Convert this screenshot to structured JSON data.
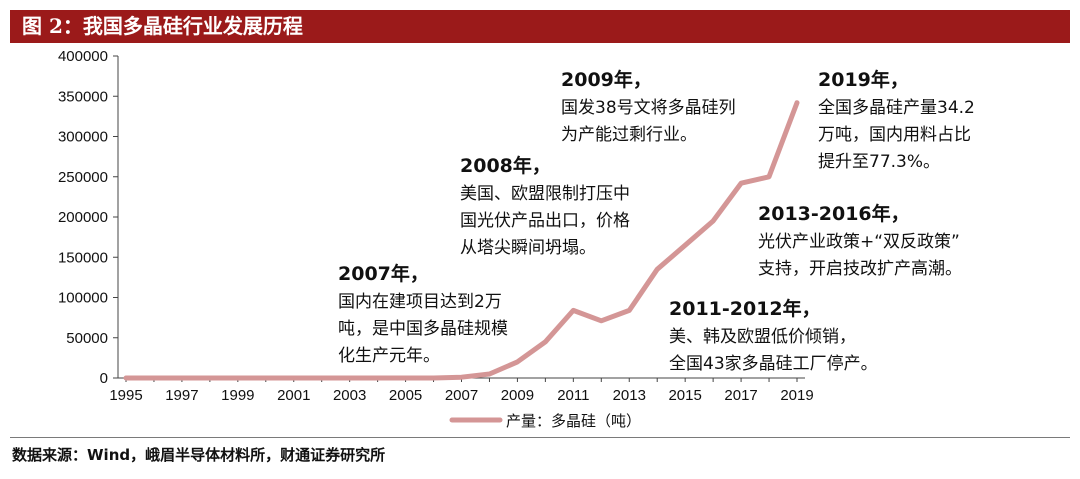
{
  "header": {
    "title": "图 2：我国多晶硅行业发展历程"
  },
  "footer": {
    "source": "数据来源：Wind，峨眉半导体材料所，财通证券研究所"
  },
  "colors": {
    "title_bg": "#9b1a1a",
    "series_line": "#d49696"
  },
  "chart_data": {
    "type": "line",
    "title": "",
    "xlabel": "",
    "ylabel": "",
    "x": [
      1995,
      1996,
      1997,
      1998,
      1999,
      2000,
      2001,
      2002,
      2003,
      2004,
      2005,
      2006,
      2007,
      2008,
      2009,
      2010,
      2011,
      2012,
      2013,
      2014,
      2015,
      2016,
      2017,
      2018,
      2019
    ],
    "x_tick_labels": [
      "1995",
      "1997",
      "1999",
      "2001",
      "2003",
      "2005",
      "2007",
      "2009",
      "2011",
      "2013",
      "2015",
      "2017",
      "2019"
    ],
    "y_tick_labels": [
      "0",
      "50000",
      "100000",
      "150000",
      "200000",
      "250000",
      "300000",
      "350000",
      "400000"
    ],
    "ylim": [
      0,
      400000
    ],
    "series": [
      {
        "name": "产量：多晶硅（吨）",
        "values": [
          0,
          0,
          0,
          0,
          0,
          0,
          0,
          0,
          0,
          0,
          0,
          0,
          1000,
          5000,
          20000,
          45000,
          84000,
          71000,
          84000,
          135000,
          165000,
          195000,
          242000,
          250000,
          342000
        ]
      }
    ],
    "legend": {
      "position": "bottom-center"
    },
    "annotations": [
      {
        "head": "2007年，",
        "lines": [
          "国内在建项目达到2万",
          "吨，是中国多晶硅规模",
          "化生产元年。"
        ]
      },
      {
        "head": "2008年，",
        "lines": [
          "美国、欧盟限制打压中",
          "国光伏产品出口，价格",
          "从塔尖瞬间坍塌。"
        ]
      },
      {
        "head": "2009年，",
        "lines": [
          "国发38号文将多晶硅列",
          "为产能过剩行业。"
        ]
      },
      {
        "head": "2011-2012年，",
        "lines": [
          "美、韩及欧盟低价倾销，",
          "全国43家多晶硅工厂停产。"
        ]
      },
      {
        "head": "2013-2016年，",
        "lines": [
          "光伏产业政策+“双反政策”",
          "支持，开启技改扩产高潮。"
        ]
      },
      {
        "head": "2019年，",
        "lines": [
          "全国多晶硅产量34.2",
          "万吨，国内用料占比",
          "提升至77.3%。"
        ]
      }
    ]
  }
}
